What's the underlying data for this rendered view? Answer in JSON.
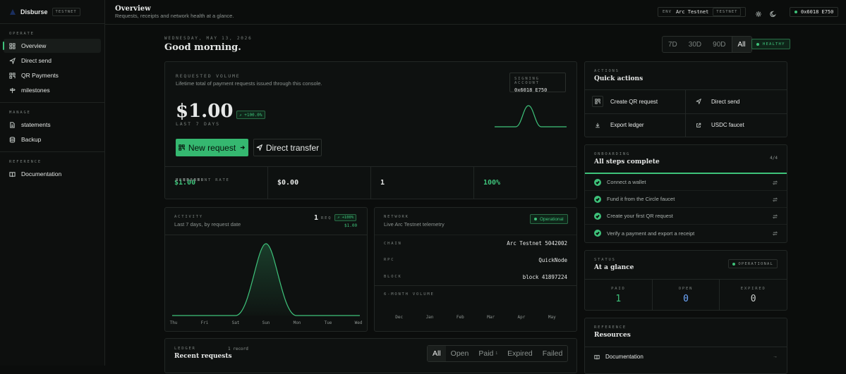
{
  "brand": {
    "name": "Disburse",
    "env_tag": "TESTNET"
  },
  "sidebar": {
    "sections": [
      {
        "title": "OPERATE",
        "items": [
          {
            "label": "Overview",
            "icon": "grid-icon",
            "active": true
          },
          {
            "label": "Direct send",
            "icon": "send-icon"
          },
          {
            "label": "QR Payments",
            "icon": "qr-icon"
          },
          {
            "label": "milestones",
            "icon": "signpost-icon"
          }
        ]
      },
      {
        "title": "MANAGE",
        "items": [
          {
            "label": "statements",
            "icon": "document-icon"
          },
          {
            "label": "Backup",
            "icon": "database-icon"
          }
        ]
      },
      {
        "title": "REFERENCE",
        "items": [
          {
            "label": "Documentation",
            "icon": "book-icon"
          }
        ]
      }
    ]
  },
  "header": {
    "title": "Overview",
    "subtitle": "Requests, receipts and network health at a glance.",
    "env_label": "ENV",
    "env_value": "Arc Testnet",
    "env_tag": "TESTNET",
    "wallet": "0x6018 E750"
  },
  "greeting": {
    "date": "WEDNESDAY, MAY 13, 2026",
    "text": "Good morning."
  },
  "range": {
    "options": [
      "7D",
      "30D",
      "90D",
      "All"
    ],
    "selected": "All"
  },
  "health": "HEALTHY",
  "volume": {
    "label": "REQUESTED VOLUME",
    "description": "Lifetime total of payment requests issued through this console.",
    "signing_label": "SIGNING ACCOUNT",
    "signing_value": "0x6018 E750",
    "amount": "$1.00",
    "change": "↗ +100.0%",
    "period": "LAST 7 DAYS",
    "new_request": "New request",
    "direct_transfer": "Direct transfer",
    "stats": [
      {
        "label": "VERIFIED",
        "value": "$1.00",
        "green": true
      },
      {
        "label": "PENDING",
        "value": "$0.00"
      },
      {
        "label": "REQUESTS",
        "value": "1"
      },
      {
        "label": "SETTLEMENT RATE",
        "value": "100%",
        "green": true
      }
    ]
  },
  "activity": {
    "label": "ACTIVITY",
    "description": "Last 7 days, by request date",
    "count": "1",
    "count_unit": "REQ",
    "delta": "↗ +100%",
    "amount": "$1.00",
    "days": [
      "Thu",
      "Fri",
      "Sat",
      "Sun",
      "Mon",
      "Tue",
      "Wed"
    ]
  },
  "network": {
    "label": "NETWORK",
    "description": "Live Arc Testnet telemetry",
    "status": "Operational",
    "rows": [
      {
        "label": "CHAIN",
        "value": "Arc Testnet 5042002"
      },
      {
        "label": "RPC",
        "value": "QuickNode"
      },
      {
        "label": "BLOCK",
        "value": "block 41897224"
      }
    ],
    "volume_label": "6-MONTH VOLUME",
    "months": [
      "Dec",
      "Jan",
      "Feb",
      "Mar",
      "Apr",
      "May"
    ]
  },
  "ledger": {
    "label": "LEDGER",
    "records": "1 record",
    "title": "Recent requests",
    "filters": [
      "All",
      "Open",
      "Paid",
      "Expired",
      "Failed"
    ],
    "paid_count": "1"
  },
  "quick_actions": {
    "label": "ACTIONS",
    "title": "Quick actions",
    "items": [
      "Create QR request",
      "Direct send",
      "Export ledger",
      "USDC faucet"
    ]
  },
  "onboarding": {
    "label": "ONBOARDING",
    "title": "All steps complete",
    "count": "4/4",
    "steps": [
      "Connect a wallet",
      "Fund it from the Circle faucet",
      "Create your first QR request",
      "Verify a payment and export a receipt"
    ]
  },
  "status": {
    "label": "STATUS",
    "title": "At a glance",
    "badge": "OPERATIONAL",
    "cells": [
      {
        "label": "PAID",
        "value": "1"
      },
      {
        "label": "OPEN",
        "value": "0"
      },
      {
        "label": "EXPIRED",
        "value": "0"
      }
    ]
  },
  "resources": {
    "label": "REFERENCE",
    "title": "Resources",
    "items": [
      "Documentation"
    ]
  },
  "colors": {
    "accent": "#3ec27a",
    "background": "#0b0d0c",
    "open": "#6ea8ff"
  }
}
